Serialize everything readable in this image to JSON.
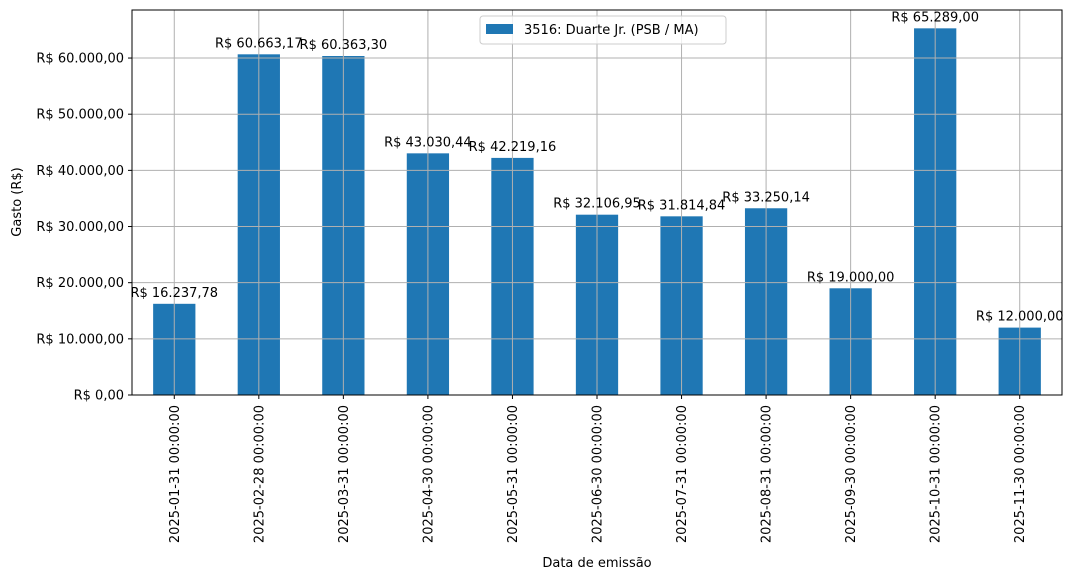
{
  "chart_data": {
    "type": "bar",
    "title": "",
    "xlabel": "Data de emissão",
    "ylabel": "Gasto (R$)",
    "ylim": [
      0,
      68554
    ],
    "grid": true,
    "legend_position": "upper center",
    "categories": [
      "2025-01-31 00:00:00",
      "2025-02-28 00:00:00",
      "2025-03-31 00:00:00",
      "2025-04-30 00:00:00",
      "2025-05-31 00:00:00",
      "2025-06-30 00:00:00",
      "2025-07-31 00:00:00",
      "2025-08-31 00:00:00",
      "2025-09-30 00:00:00",
      "2025-10-31 00:00:00",
      "2025-11-30 00:00:00"
    ],
    "series": [
      {
        "name": "3516: Duarte Jr. (PSB / MA)",
        "color": "#1f77b4",
        "values": [
          16237.78,
          60663.17,
          60363.3,
          43030.44,
          42219.16,
          32106.95,
          31814.84,
          33250.14,
          19000.0,
          65289.0,
          12000.0
        ],
        "labels": [
          "R$ 16.237,78",
          "R$ 60.663,17",
          "R$ 60.363,30",
          "R$ 43.030,44",
          "R$ 42.219,16",
          "R$ 32.106,95",
          "R$ 31.814,84",
          "R$ 33.250,14",
          "R$ 19.000,00",
          "R$ 65.289,00",
          "R$ 12.000,00"
        ]
      }
    ],
    "y_ticks": [
      {
        "value": 0,
        "label": "R$ 0,00"
      },
      {
        "value": 10000,
        "label": "R$ 10.000,00"
      },
      {
        "value": 20000,
        "label": "R$ 20.000,00"
      },
      {
        "value": 30000,
        "label": "R$ 30.000,00"
      },
      {
        "value": 40000,
        "label": "R$ 40.000,00"
      },
      {
        "value": 50000,
        "label": "R$ 50.000,00"
      },
      {
        "value": 60000,
        "label": "R$ 60.000,00"
      }
    ]
  },
  "legend": {
    "label": "3516: Duarte Jr. (PSB / MA)"
  },
  "axes": {
    "xlabel": "Data de emissão",
    "ylabel": "Gasto (R$)"
  }
}
